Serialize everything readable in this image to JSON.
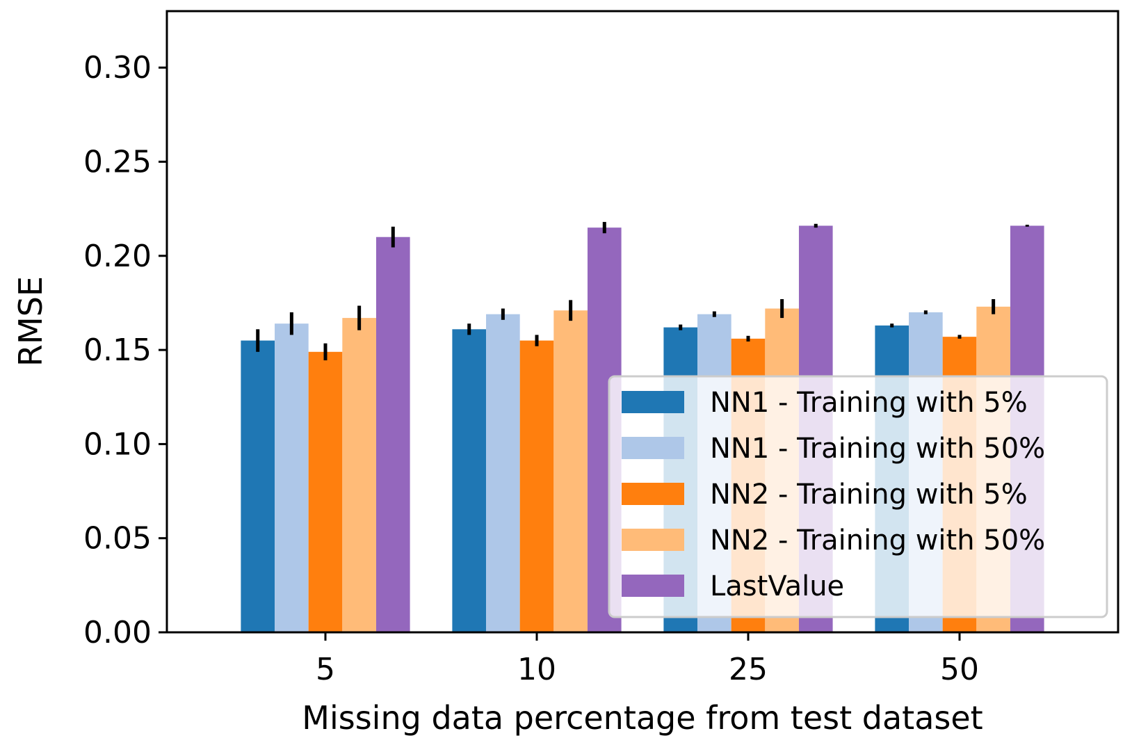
{
  "chart_data": {
    "type": "bar",
    "title": "",
    "xlabel": "Missing data percentage from test dataset",
    "ylabel": "RMSE",
    "categories": [
      "5",
      "10",
      "25",
      "50"
    ],
    "ylim": [
      0,
      0.33
    ],
    "yticks": [
      "0.00",
      "0.05",
      "0.10",
      "0.15",
      "0.20",
      "0.25",
      "0.30"
    ],
    "grid": false,
    "legend": "lower-right",
    "series": [
      {
        "name": "NN1 - Training with 5%",
        "color": "#1f77b4",
        "values": [
          0.155,
          0.161,
          0.162,
          0.163
        ],
        "errors": [
          0.006,
          0.003,
          0.0015,
          0.001
        ]
      },
      {
        "name": "NN1 - Training with 50%",
        "color": "#aec7e8",
        "values": [
          0.164,
          0.169,
          0.169,
          0.17
        ],
        "errors": [
          0.006,
          0.003,
          0.0015,
          0.001
        ]
      },
      {
        "name": "NN2 - Training with 5%",
        "color": "#ff7f0e",
        "values": [
          0.149,
          0.155,
          0.156,
          0.157
        ],
        "errors": [
          0.0045,
          0.003,
          0.0015,
          0.001
        ]
      },
      {
        "name": "NN2 - Training with 50%",
        "color": "#ffbb78",
        "values": [
          0.167,
          0.171,
          0.172,
          0.173
        ],
        "errors": [
          0.0065,
          0.0055,
          0.005,
          0.004
        ]
      },
      {
        "name": "LastValue",
        "color": "#9467bd",
        "values": [
          0.21,
          0.215,
          0.216,
          0.216
        ],
        "errors": [
          0.0055,
          0.003,
          0.001,
          0.0005
        ]
      }
    ]
  }
}
